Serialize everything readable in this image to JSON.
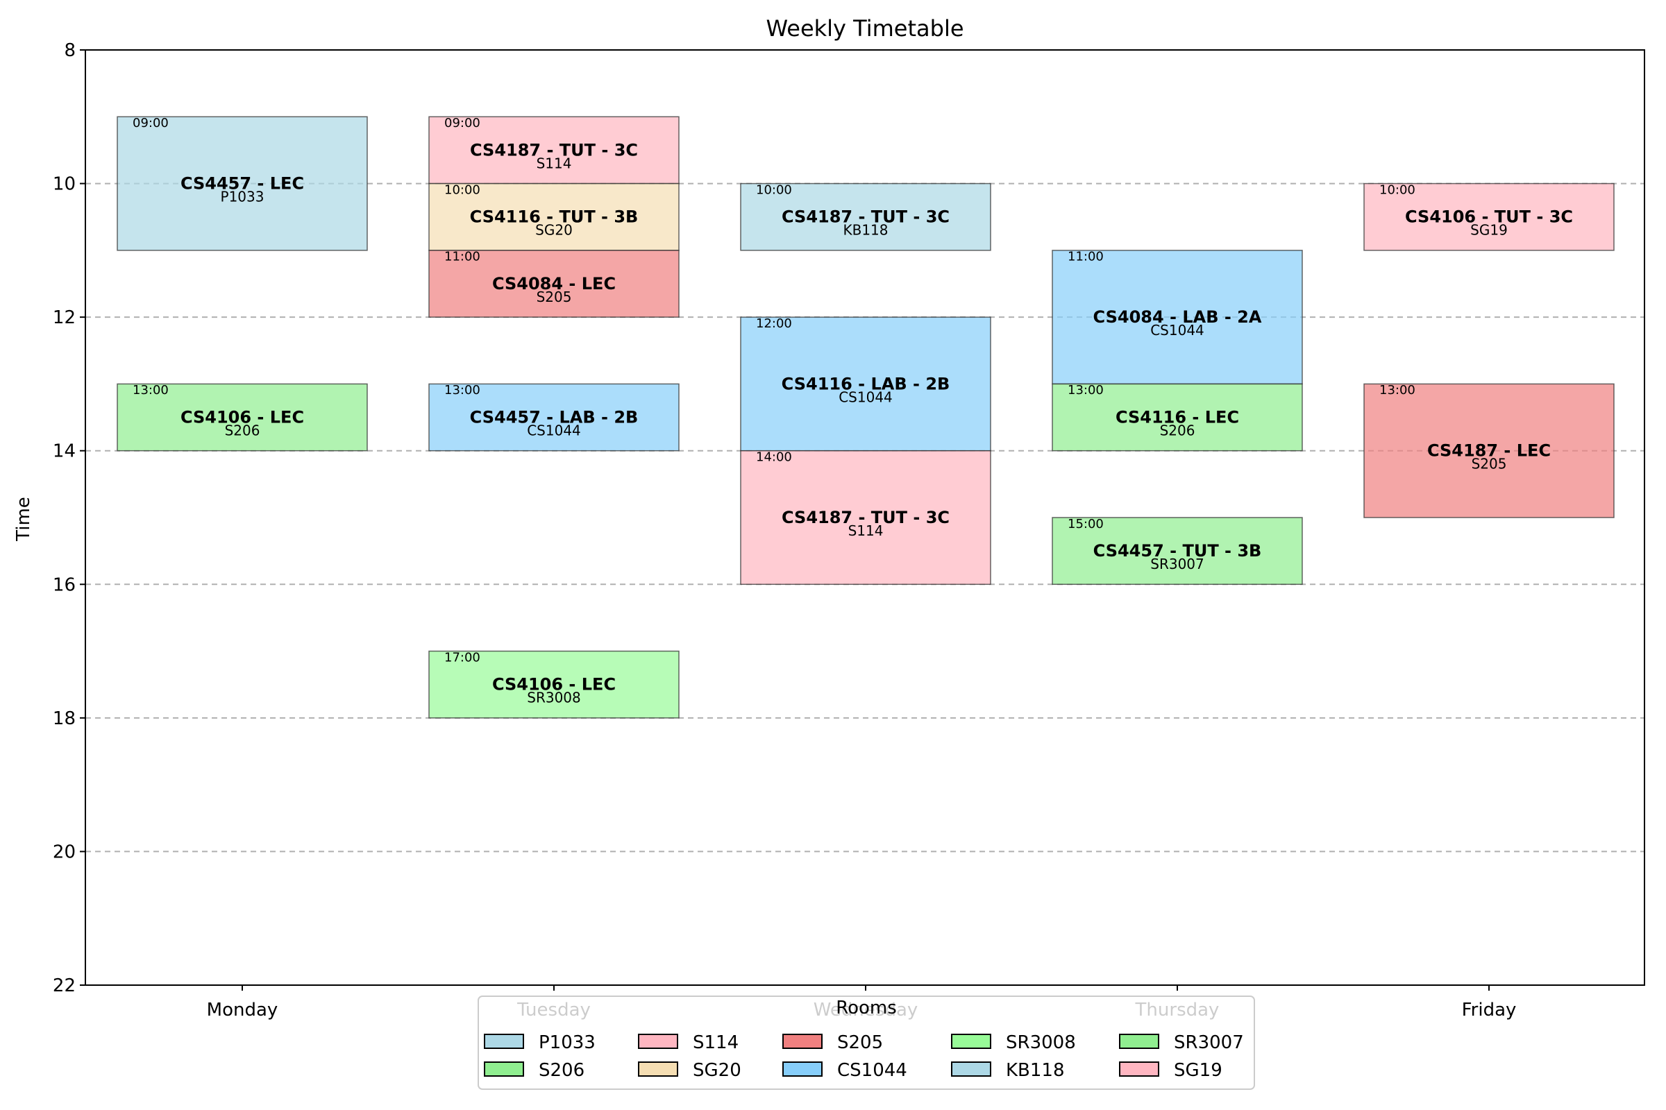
{
  "chart_data": {
    "type": "timetable",
    "title": "Weekly Timetable",
    "ylabel": "Time",
    "xlabel": "",
    "ylim": [
      8,
      22
    ],
    "y_inverted": true,
    "yticks": [
      "8",
      "10",
      "12",
      "14",
      "16",
      "18",
      "20",
      "22"
    ],
    "grid": "horizontal dashed",
    "days": [
      "Monday",
      "Tuesday",
      "Wednesday",
      "Thursday",
      "Friday"
    ],
    "events": [
      {
        "day": "Monday",
        "start": 9,
        "end": 11,
        "time_label": "09:00",
        "title": "CS4457 - LEC",
        "room": "P1033"
      },
      {
        "day": "Monday",
        "start": 13,
        "end": 14,
        "time_label": "13:00",
        "title": "CS4106 - LEC",
        "room": "S206"
      },
      {
        "day": "Tuesday",
        "start": 9,
        "end": 10,
        "time_label": "09:00",
        "title": "CS4187 - TUT - 3C",
        "room": "S114"
      },
      {
        "day": "Tuesday",
        "start": 10,
        "end": 11,
        "time_label": "10:00",
        "title": "CS4116 - TUT - 3B",
        "room": "SG20"
      },
      {
        "day": "Tuesday",
        "start": 11,
        "end": 12,
        "time_label": "11:00",
        "title": "CS4084 - LEC",
        "room": "S205"
      },
      {
        "day": "Tuesday",
        "start": 13,
        "end": 14,
        "time_label": "13:00",
        "title": "CS4457 - LAB - 2B",
        "room": "CS1044"
      },
      {
        "day": "Tuesday",
        "start": 17,
        "end": 18,
        "time_label": "17:00",
        "title": "CS4106 - LEC",
        "room": "SR3008"
      },
      {
        "day": "Wednesday",
        "start": 10,
        "end": 11,
        "time_label": "10:00",
        "title": "CS4187 - TUT - 3C",
        "room": "KB118"
      },
      {
        "day": "Wednesday",
        "start": 12,
        "end": 14,
        "time_label": "12:00",
        "title": "CS4116 - LAB - 2B",
        "room": "CS1044"
      },
      {
        "day": "Wednesday",
        "start": 14,
        "end": 16,
        "time_label": "14:00",
        "title": "CS4187 - TUT - 3C",
        "room": "S114"
      },
      {
        "day": "Thursday",
        "start": 11,
        "end": 13,
        "time_label": "11:00",
        "title": "CS4084 - LAB - 2A",
        "room": "CS1044"
      },
      {
        "day": "Thursday",
        "start": 13,
        "end": 14,
        "time_label": "13:00",
        "title": "CS4116 - LEC",
        "room": "S206"
      },
      {
        "day": "Thursday",
        "start": 15,
        "end": 16,
        "time_label": "15:00",
        "title": "CS4457 - TUT - 3B",
        "room": "SR3007"
      },
      {
        "day": "Friday",
        "start": 10,
        "end": 11,
        "time_label": "10:00",
        "title": "CS4106 - TUT - 3C",
        "room": "SG19"
      },
      {
        "day": "Friday",
        "start": 13,
        "end": 15,
        "time_label": "13:00",
        "title": "CS4187 - LEC",
        "room": "S205"
      }
    ],
    "legend": {
      "title": "Rooms",
      "placement": "bottom-center",
      "entries": [
        {
          "room": "P1033",
          "color": "#add8e6"
        },
        {
          "room": "S114",
          "color": "#ffb6c1"
        },
        {
          "room": "S205",
          "color": "#f08080"
        },
        {
          "room": "SR3008",
          "color": "#98fb98"
        },
        {
          "room": "SR3007",
          "color": "#90ee90"
        },
        {
          "room": "S206",
          "color": "#90ee90"
        },
        {
          "room": "SG20",
          "color": "#f5deb3"
        },
        {
          "room": "CS1044",
          "color": "#87cefa"
        },
        {
          "room": "KB118",
          "color": "#add8e6"
        },
        {
          "room": "SG19",
          "color": "#ffb6c1"
        }
      ]
    },
    "colors": {
      "P1033": "#add8e6",
      "S206": "#90ee90",
      "S114": "#ffb6c1",
      "SG20": "#f5deb3",
      "S205": "#f08080",
      "CS1044": "#87cefa",
      "SR3008": "#98fb98",
      "KB118": "#add8e6",
      "SR3007": "#90ee90",
      "SG19": "#ffb6c1"
    },
    "block_opacity": 0.7
  }
}
